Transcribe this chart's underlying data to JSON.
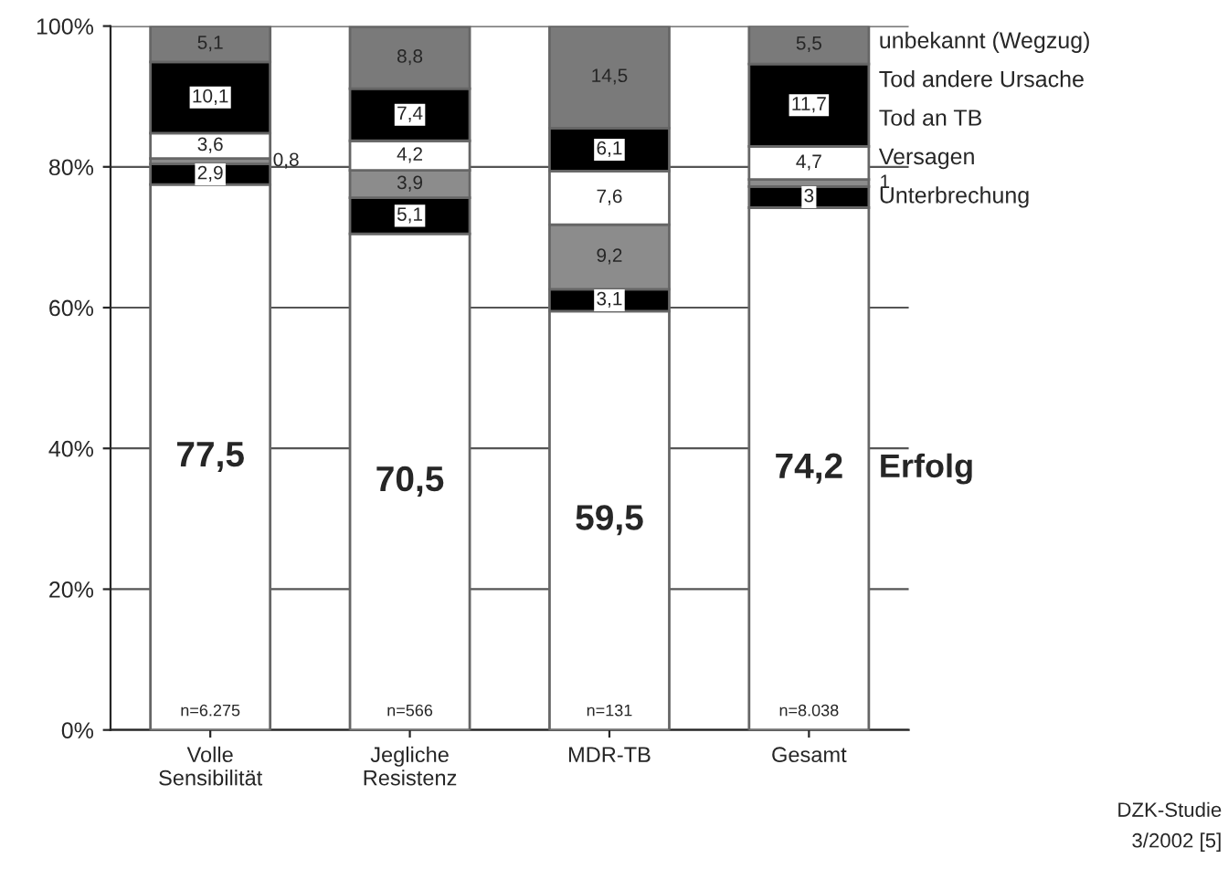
{
  "chart_data": {
    "type": "bar",
    "stacked": true,
    "grid": "y",
    "legend": false,
    "categories": [
      "Volle\nSensibilität",
      "Jegliche\nResistenz",
      "MDR-TB",
      "Gesamt"
    ],
    "ylim": [
      0,
      100
    ],
    "yticks": [
      {
        "value": 0,
        "label": "0%"
      },
      {
        "value": 20,
        "label": "20%"
      },
      {
        "value": 40,
        "label": "40%"
      },
      {
        "value": 60,
        "label": "60%"
      },
      {
        "value": 80,
        "label": "80%"
      },
      {
        "value": 100,
        "label": "100%"
      }
    ],
    "series": [
      {
        "name": "Erfolg",
        "color": "#ffffff",
        "values": [
          77.5,
          70.5,
          59.5,
          74.2
        ],
        "value_labels": [
          "77,5",
          "70,5",
          "59,5",
          "74,2"
        ]
      },
      {
        "name": "Unterbrechung",
        "color": "#000000",
        "values": [
          2.9,
          5.1,
          3.1,
          3
        ],
        "value_labels": [
          "2,9",
          "5,1",
          "3,1",
          "3"
        ]
      },
      {
        "name": "Versagen",
        "color": "#8c8c8c",
        "values": [
          0.8,
          3.9,
          9.2,
          1
        ],
        "value_labels": [
          "0,8",
          "3,9",
          "9,2",
          "1"
        ]
      },
      {
        "name": "Tod an TB",
        "color": "#ffffff",
        "values": [
          3.6,
          4.2,
          7.6,
          4.7
        ],
        "value_labels": [
          "3,6",
          "4,2",
          "7,6",
          "4,7"
        ]
      },
      {
        "name": "Tod andere Ursache",
        "color": "#000000",
        "values": [
          10.1,
          7.4,
          6.1,
          11.7
        ],
        "value_labels": [
          "10,1",
          "7,4",
          "6,1",
          "11,7"
        ]
      },
      {
        "name": "unbekannt (Wegzug)",
        "color": "#7a7a7a",
        "values": [
          5.1,
          8.8,
          14.5,
          5.5
        ],
        "value_labels": [
          "5,1",
          "8,8",
          "14,5",
          "5,5"
        ]
      }
    ],
    "annotations": [
      "n=6.275",
      "n=566",
      "n=131",
      "n=8.038",
      "DZK-Studie\n3/2002 [5]"
    ]
  }
}
